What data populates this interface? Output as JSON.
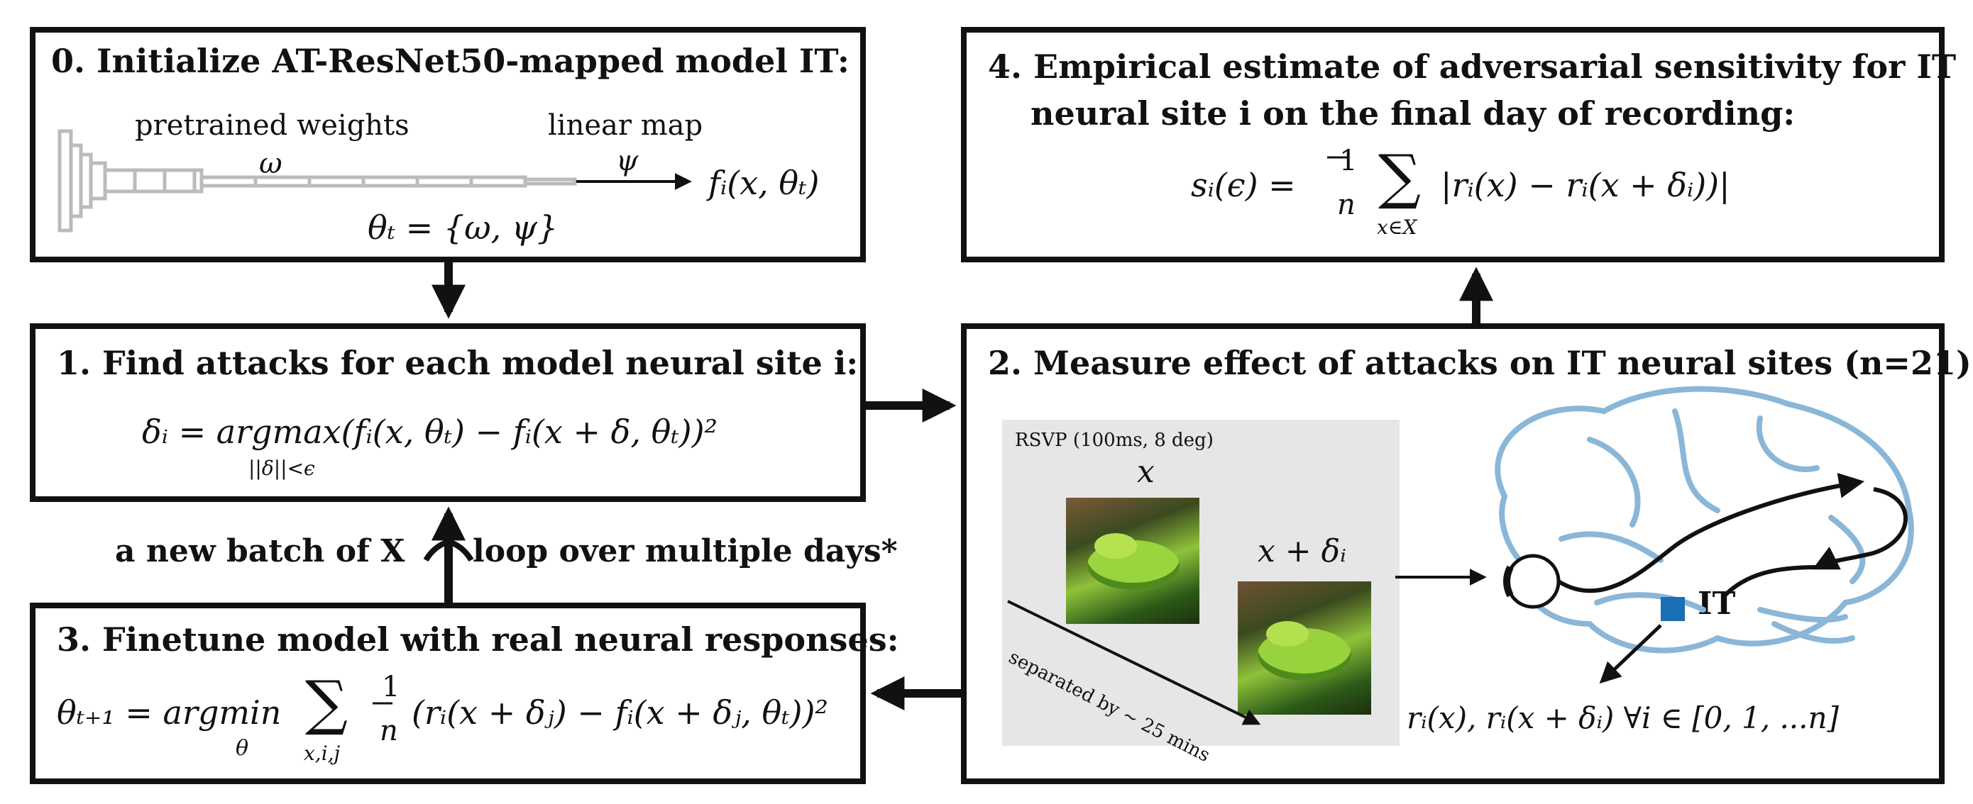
{
  "box0": {
    "title": "0. Initialize AT-ResNet50-mapped model IT:",
    "weights_label": "pretrained weights",
    "omega": "ω",
    "linear_map_label": "linear map",
    "psi": "ψ",
    "output": "fᵢ(x, θₜ)",
    "theta_def": "θₜ = {ω, ψ}"
  },
  "box1": {
    "title": "1. Find attacks for each model neural site i:",
    "formula": "δᵢ = argmax(fᵢ(x, θₜ) − fᵢ(x + δ, θₜ))²",
    "subscript": "||δ||<ϵ"
  },
  "box2": {
    "title": "2. Measure effect of attacks on IT neural sites (n=21)",
    "rsvp": "RSVP (100ms, 8 deg)",
    "x_label": "x",
    "x_delta_label": "x + δᵢ",
    "separated": "separated by ~ 25 mins",
    "it_label": "IT",
    "responses": "rᵢ(x), rᵢ(x + δᵢ) ∀i ∈ [0, 1, ...n]"
  },
  "box3": {
    "title": "3. Finetune model with real neural responses:",
    "formula_lhs": "θₜ₊₁ = argmin",
    "formula_sub": "θ",
    "sum_sub": "x,i,j",
    "frac_num": "1",
    "frac_den": "n",
    "formula_rhs": "(rᵢ(x + δⱼ) − fᵢ(x + δⱼ, θₜ))²"
  },
  "box4": {
    "title_line1": "4. Empirical estimate of adversarial sensitivity for IT",
    "title_line2": "neural site i on the final day of recording:",
    "formula_lhs": "sᵢ(ϵ) =",
    "frac_num": "1",
    "frac_den": "n",
    "sum_sub": "x∈X",
    "formula_rhs": "|rᵢ(x) − rᵢ(x + δᵢ))|"
  },
  "loop": {
    "left_label": "a new batch of X",
    "right_label": "loop over multiple days*"
  },
  "colors": {
    "brain": "#8ab6d8",
    "it_marker": "#1a6fb5",
    "panel_bg": "#e6e6e6"
  }
}
